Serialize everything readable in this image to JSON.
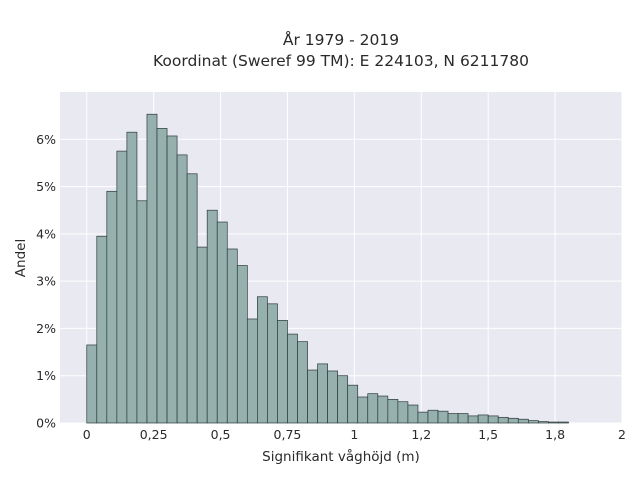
{
  "chart_data": {
    "type": "bar",
    "title_lines": [
      "År 1979 - 2019",
      "Koordinat (Sweref 99 TM): E 224103, N 6211780"
    ],
    "xlabel": "Signifikant våghöjd (m)",
    "ylabel": "Andel",
    "xlim": [
      -0.1,
      2.0
    ],
    "ylim": [
      0,
      7.0
    ],
    "x_ticks": [
      {
        "value": 0,
        "label": "0"
      },
      {
        "value": 0.25,
        "label": "0,25"
      },
      {
        "value": 0.5,
        "label": "0,5"
      },
      {
        "value": 0.75,
        "label": "0,75"
      },
      {
        "value": 1.0,
        "label": "1"
      },
      {
        "value": 1.25,
        "label": "1,2"
      },
      {
        "value": 1.5,
        "label": "1,5"
      },
      {
        "value": 1.75,
        "label": "1,8"
      },
      {
        "value": 2.0,
        "label": "2"
      }
    ],
    "y_ticks": [
      {
        "value": 0,
        "label": "0%"
      },
      {
        "value": 1,
        "label": "1%"
      },
      {
        "value": 2,
        "label": "2%"
      },
      {
        "value": 3,
        "label": "3%"
      },
      {
        "value": 4,
        "label": "4%"
      },
      {
        "value": 5,
        "label": "5%"
      },
      {
        "value": 6,
        "label": "6%"
      }
    ],
    "bin_start": 0,
    "bin_width": 0.0375,
    "values": [
      1.65,
      3.95,
      4.9,
      5.75,
      6.15,
      4.7,
      6.53,
      6.23,
      6.07,
      5.67,
      5.27,
      3.72,
      4.5,
      4.25,
      3.68,
      3.33,
      2.2,
      2.67,
      2.52,
      2.17,
      1.88,
      1.72,
      1.12,
      1.25,
      1.1,
      1.0,
      0.8,
      0.55,
      0.62,
      0.57,
      0.5,
      0.45,
      0.38,
      0.23,
      0.27,
      0.25,
      0.2,
      0.2,
      0.15,
      0.17,
      0.15,
      0.12,
      0.1,
      0.08,
      0.05,
      0.03,
      0.02,
      0.02
    ],
    "grid": true,
    "colors": {
      "bar_fill": "#96b0ae",
      "bar_edge": "#2b3a39",
      "plot_background": "#e9e9f1",
      "grid": "#ffffff"
    }
  }
}
